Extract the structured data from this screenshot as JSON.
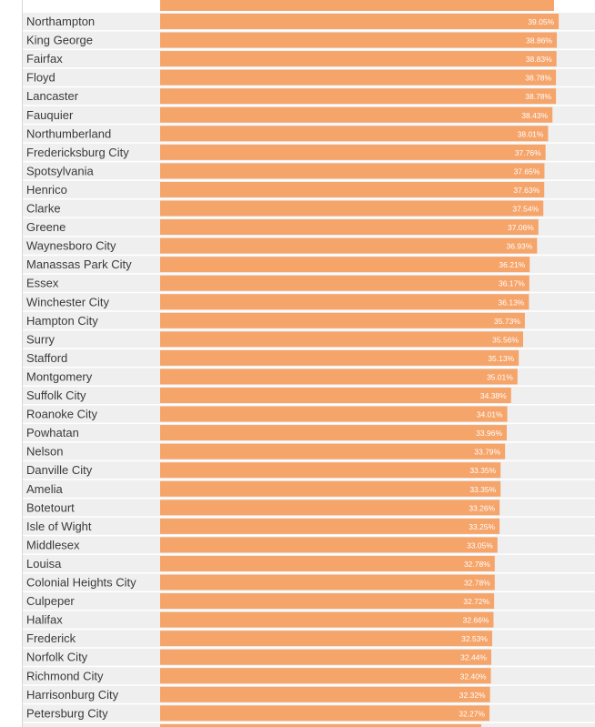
{
  "chart_data": {
    "type": "bar",
    "orientation": "horizontal",
    "title": "",
    "xlabel": "",
    "ylabel": "",
    "xlim": [
      0,
      39.8
    ],
    "grid": false,
    "legend": "none",
    "bar_color": "#f5a46a",
    "row_color": "#efefef",
    "categories": [
      "Northampton",
      "King George",
      "Fairfax",
      "Floyd",
      "Lancaster",
      "Fauquier",
      "Northumberland",
      "Fredericksburg City",
      "Spotsylvania",
      "Henrico",
      "Clarke",
      "Greene",
      "Waynesboro City",
      "Manassas Park City",
      "Essex",
      "Winchester City",
      "Hampton City",
      "Surry",
      "Stafford",
      "Montgomery",
      "Suffolk City",
      "Roanoke City",
      "Powhatan",
      "Nelson",
      "Danville City",
      "Amelia",
      "Botetourt",
      "Isle of Wight",
      "Middlesex",
      "Louisa",
      "Colonial Heights City",
      "Culpeper",
      "Halifax",
      "Frederick",
      "Norfolk City",
      "Richmond City",
      "Harrisonburg City",
      "Petersburg City"
    ],
    "values": [
      39.05,
      38.86,
      38.83,
      38.78,
      38.78,
      38.43,
      38.01,
      37.76,
      37.65,
      37.63,
      37.54,
      37.06,
      36.93,
      36.21,
      36.17,
      36.13,
      35.73,
      35.56,
      35.13,
      35.01,
      34.38,
      34.01,
      33.96,
      33.79,
      33.35,
      33.35,
      33.26,
      33.25,
      33.05,
      32.78,
      32.78,
      32.72,
      32.66,
      32.53,
      32.44,
      32.4,
      32.32,
      32.27
    ],
    "value_labels": [
      "39.05%",
      "38.86%",
      "38.83%",
      "38.78%",
      "38.78%",
      "38.43%",
      "38.01%",
      "37.76%",
      "37.65%",
      "37.63%",
      "37.54%",
      "37.06%",
      "36.93%",
      "36.21%",
      "36.17%",
      "36.13%",
      "35.73%",
      "35.56%",
      "35.13%",
      "35.01%",
      "34.38%",
      "34.01%",
      "33.96%",
      "33.79%",
      "33.35%",
      "33.35%",
      "33.26%",
      "33.25%",
      "33.05%",
      "32.78%",
      "32.78%",
      "32.72%",
      "32.66%",
      "32.53%",
      "32.44%",
      "32.40%",
      "32.32%",
      "32.27%"
    ]
  }
}
